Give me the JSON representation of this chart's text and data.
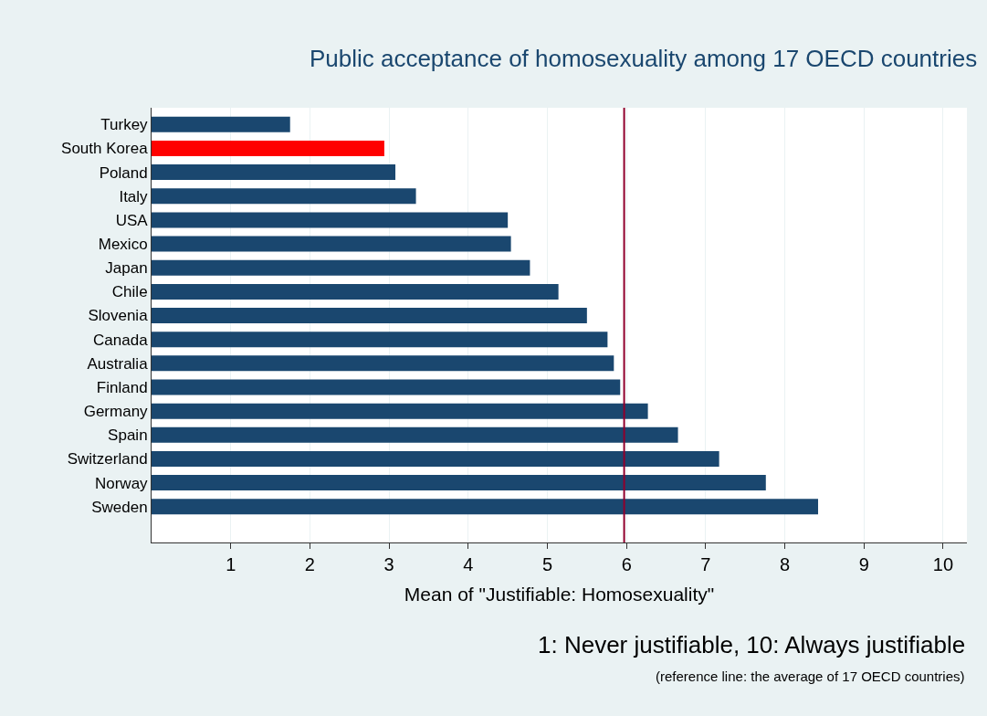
{
  "chart_data": {
    "type": "bar",
    "orientation": "horizontal",
    "title": "Public acceptance of homosexuality among 17 OECD countries",
    "xlabel": "Mean of \"Justifiable: Homosexuality\"",
    "categories": [
      "Turkey",
      "South Korea",
      "Poland",
      "Italy",
      "USA",
      "Mexico",
      "Japan",
      "Chile",
      "Slovenia",
      "Canada",
      "Australia",
      "Finland",
      "Germany",
      "Spain",
      "Switzerland",
      "Norway",
      "Sweden"
    ],
    "values": [
      1.75,
      2.94,
      3.08,
      3.34,
      4.5,
      4.54,
      4.78,
      5.14,
      5.5,
      5.76,
      5.84,
      5.92,
      6.27,
      6.65,
      7.17,
      7.76,
      8.42
    ],
    "colors": [
      "#1a476f",
      "#ff0000",
      "#1a476f",
      "#1a476f",
      "#1a476f",
      "#1a476f",
      "#1a476f",
      "#1a476f",
      "#1a476f",
      "#1a476f",
      "#1a476f",
      "#1a476f",
      "#1a476f",
      "#1a476f",
      "#1a476f",
      "#1a476f",
      "#1a476f"
    ],
    "xlim": [
      0,
      10.3
    ],
    "xticks": [
      1,
      2,
      3,
      4,
      5,
      6,
      7,
      8,
      9,
      10
    ],
    "grid": "x",
    "ref_lines": [
      {
        "axis": "x",
        "value": 5.97,
        "label": null,
        "color": "#90002d"
      }
    ],
    "annotations": [
      "1: Never justifiable, 10: Always justifiable",
      "(reference line: the average of 17 OECD countries)"
    ]
  }
}
